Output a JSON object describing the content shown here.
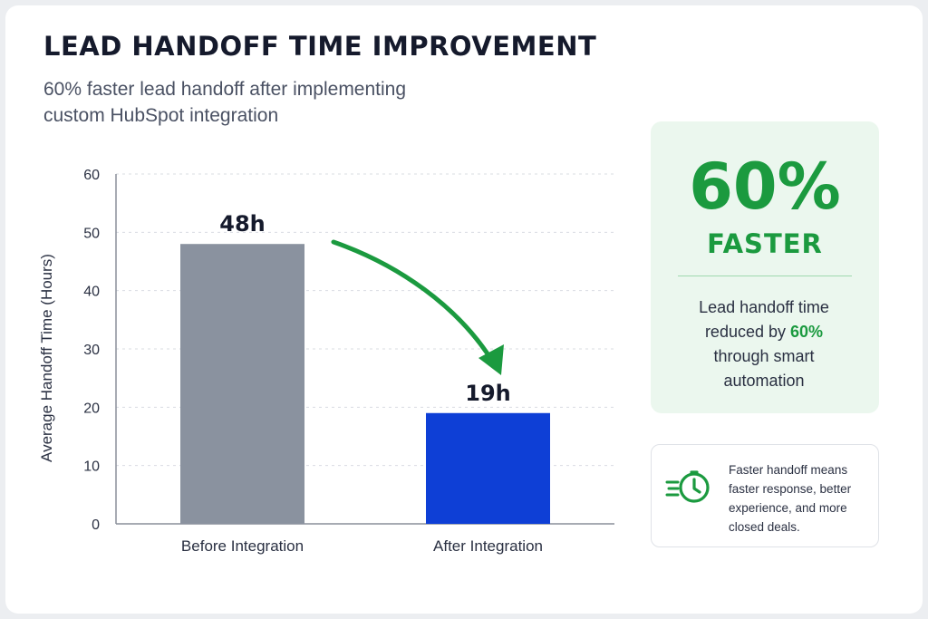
{
  "header": {
    "title": "LEAD HANDOFF TIME IMPROVEMENT",
    "subtitle_line1": "60% faster lead handoff after implementing",
    "subtitle_line2": "custom HubSpot integration"
  },
  "chart_data": {
    "type": "bar",
    "categories": [
      "Before Integration",
      "After Integration"
    ],
    "values": [
      48,
      19
    ],
    "data_labels": [
      "48h",
      "19h"
    ],
    "ylabel": "Average Handoff Time (Hours)",
    "xlabel": "",
    "ylim": [
      0,
      60
    ],
    "yticks": [
      "0",
      "10",
      "20",
      "30",
      "40",
      "50",
      "60"
    ],
    "grid": true,
    "bar_colors": [
      "#8a929f",
      "#0e3fd6"
    ],
    "annotation": "green arrow from Before bar to After bar"
  },
  "highlight": {
    "big_value": "60%",
    "big_label": "FASTER",
    "desc_line1": "Lead handoff time",
    "desc_line2_prefix": "reduced by",
    "desc_highlight": "60%",
    "desc_line3": "through smart",
    "desc_line4": "automation"
  },
  "note": {
    "icon": "fast-clock-icon",
    "text": "Faster handoff means faster response, better experience, and more closed deals."
  },
  "colors": {
    "accent_green": "#1b9a3f",
    "before_bar": "#8a929f",
    "after_bar": "#0e3fd6"
  }
}
